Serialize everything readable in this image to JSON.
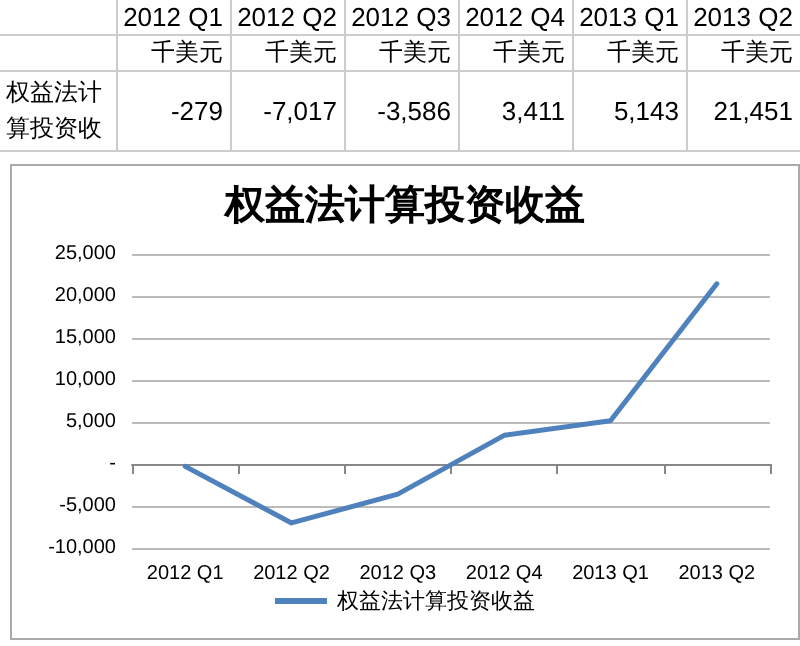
{
  "chart_data": {
    "type": "line",
    "title": "权益法计算投资收益",
    "categories": [
      "2012 Q1",
      "2012 Q2",
      "2012 Q3",
      "2012 Q4",
      "2013 Q1",
      "2013 Q2"
    ],
    "series": [
      {
        "name": "权益法计算投资收益",
        "color": "#4f81bd",
        "values": [
          -279,
          -7017,
          -3586,
          3411,
          5143,
          21451
        ],
        "value_labels": [
          "-279",
          "-7,017",
          "-3,586",
          "3,411",
          "5,143",
          "21,451"
        ]
      }
    ],
    "annotations": [
      "权益法计算投资收",
      "千美元",
      "千美元",
      "千美元",
      "千美元",
      "千美元",
      "千美元"
    ],
    "ylim": [
      -10000,
      25000
    ],
    "yticks": [
      {
        "value": -10000,
        "label": "-10,000"
      },
      {
        "value": -5000,
        "label": "-5,000"
      },
      {
        "value": 0,
        "label": "-"
      },
      {
        "value": 5000,
        "label": "5,000"
      },
      {
        "value": 10000,
        "label": "10,000"
      },
      {
        "value": 15000,
        "label": "15,000"
      },
      {
        "value": 20000,
        "label": "20,000"
      },
      {
        "value": 25000,
        "label": "25,000"
      }
    ],
    "grid": "y",
    "legend": "bottom",
    "marker": "none",
    "line_style": "solid"
  }
}
